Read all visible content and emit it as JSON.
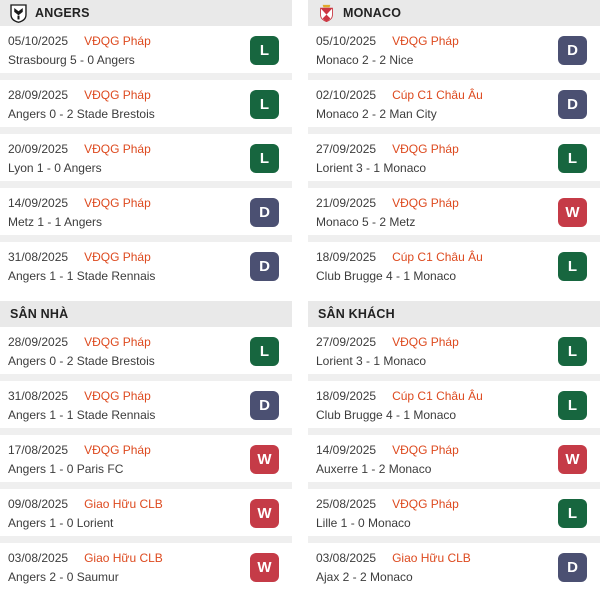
{
  "colors": {
    "win_badge": "#c53b47",
    "draw_badge": "#4b5072",
    "loss_badge": "#17663f",
    "league_text": "#dd4a1f",
    "header_bg": "#e9e9e9",
    "separator": "#efefef"
  },
  "result_colors": {
    "W": "#c53b47",
    "D": "#4b5072",
    "L": "#17663f"
  },
  "columns": [
    {
      "team": "ANGERS",
      "crest": "angers-crest",
      "recent": {
        "rows": [
          {
            "date": "05/10/2025",
            "league": "VĐQG Pháp",
            "match": "Strasbourg 5 - 0 Angers",
            "result": "L"
          },
          {
            "date": "28/09/2025",
            "league": "VĐQG Pháp",
            "match": "Angers 0 - 2 Stade Brestois",
            "result": "L"
          },
          {
            "date": "20/09/2025",
            "league": "VĐQG Pháp",
            "match": "Lyon 1 - 0 Angers",
            "result": "L"
          },
          {
            "date": "14/09/2025",
            "league": "VĐQG Pháp",
            "match": "Metz 1 - 1 Angers",
            "result": "D"
          },
          {
            "date": "31/08/2025",
            "league": "VĐQG Pháp",
            "match": "Angers 1 - 1 Stade Rennais",
            "result": "D"
          }
        ]
      },
      "venue": {
        "title": "SÂN NHÀ",
        "rows": [
          {
            "date": "28/09/2025",
            "league": "VĐQG Pháp",
            "match": "Angers 0 - 2 Stade Brestois",
            "result": "L"
          },
          {
            "date": "31/08/2025",
            "league": "VĐQG Pháp",
            "match": "Angers 1 - 1 Stade Rennais",
            "result": "D"
          },
          {
            "date": "17/08/2025",
            "league": "VĐQG Pháp",
            "match": "Angers 1 - 0 Paris FC",
            "result": "W"
          },
          {
            "date": "09/08/2025",
            "league": "Giao Hữu CLB",
            "match": "Angers 1 - 0 Lorient",
            "result": "W"
          },
          {
            "date": "03/08/2025",
            "league": "Giao Hữu CLB",
            "match": "Angers 2 - 0 Saumur",
            "result": "W"
          }
        ]
      }
    },
    {
      "team": "MONACO",
      "crest": "monaco-crest",
      "recent": {
        "rows": [
          {
            "date": "05/10/2025",
            "league": "VĐQG Pháp",
            "match": "Monaco 2 - 2 Nice",
            "result": "D"
          },
          {
            "date": "02/10/2025",
            "league": "Cúp C1 Châu Âu",
            "match": "Monaco 2 - 2 Man City",
            "result": "D"
          },
          {
            "date": "27/09/2025",
            "league": "VĐQG Pháp",
            "match": "Lorient 3 - 1 Monaco",
            "result": "L"
          },
          {
            "date": "21/09/2025",
            "league": "VĐQG Pháp",
            "match": "Monaco 5 - 2 Metz",
            "result": "W"
          },
          {
            "date": "18/09/2025",
            "league": "Cúp C1 Châu Âu",
            "match": "Club Brugge 4 - 1 Monaco",
            "result": "L"
          }
        ]
      },
      "venue": {
        "title": "SÂN KHÁCH",
        "rows": [
          {
            "date": "27/09/2025",
            "league": "VĐQG Pháp",
            "match": "Lorient 3 - 1 Monaco",
            "result": "L"
          },
          {
            "date": "18/09/2025",
            "league": "Cúp C1 Châu Âu",
            "match": "Club Brugge 4 - 1 Monaco",
            "result": "L"
          },
          {
            "date": "14/09/2025",
            "league": "VĐQG Pháp",
            "match": "Auxerre 1 - 2 Monaco",
            "result": "W"
          },
          {
            "date": "25/08/2025",
            "league": "VĐQG Pháp",
            "match": "Lille 1 - 0 Monaco",
            "result": "L"
          },
          {
            "date": "03/08/2025",
            "league": "Giao Hữu CLB",
            "match": "Ajax 2 - 2 Monaco",
            "result": "D"
          }
        ]
      }
    }
  ]
}
